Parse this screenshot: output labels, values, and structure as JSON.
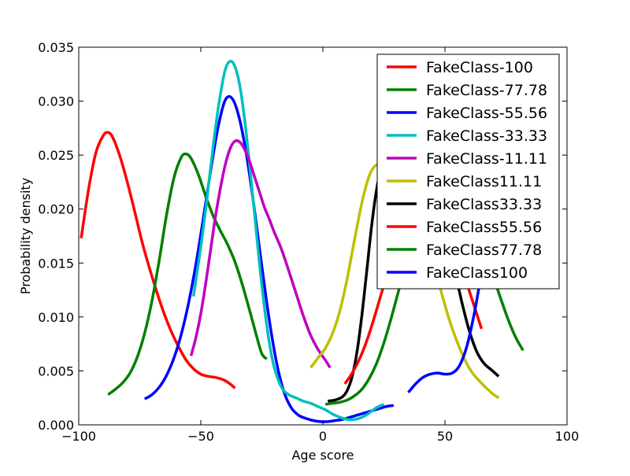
{
  "chart_data": {
    "type": "line",
    "title": "",
    "xlabel": "Age score",
    "ylabel": "Probability density",
    "xlim": [
      -100,
      100
    ],
    "ylim": [
      0,
      0.035
    ],
    "xticks": [
      -100,
      -50,
      0,
      50,
      100
    ],
    "xtick_labels": [
      "−100",
      "−50",
      "0",
      "50",
      "100"
    ],
    "yticks": [
      0,
      0.005,
      0.01,
      0.015,
      0.02,
      0.025,
      0.03,
      0.035
    ],
    "ytick_labels": [
      "0.000",
      "0.005",
      "0.010",
      "0.015",
      "0.020",
      "0.025",
      "0.030",
      "0.035"
    ],
    "grid": false,
    "legend_position": "top-right",
    "series": [
      {
        "name": "FakeClass-100",
        "color": "#ff0000",
        "x": [
          -99,
          -96,
          -93,
          -90,
          -88,
          -86,
          -83,
          -80,
          -77,
          -74,
          -71,
          -68,
          -65,
          -62,
          -59,
          -56,
          -53,
          -50,
          -47,
          -44,
          -41,
          -38,
          -36
        ],
        "y": [
          0.0173,
          0.0218,
          0.0252,
          0.0268,
          0.0271,
          0.0266,
          0.0248,
          0.0224,
          0.0197,
          0.0169,
          0.0145,
          0.0123,
          0.0103,
          0.0086,
          0.0072,
          0.006,
          0.0052,
          0.0047,
          0.0045,
          0.0044,
          0.0042,
          0.0038,
          0.0034
        ]
      },
      {
        "name": "FakeClass-77.78",
        "color": "#008000",
        "x": [
          -88,
          -85,
          -82,
          -79,
          -76,
          -73,
          -70,
          -67,
          -64,
          -61,
          -58,
          -56,
          -54,
          -51,
          -48,
          -45,
          -42,
          -39,
          -36,
          -33,
          -30,
          -27,
          -25,
          -23
        ],
        "y": [
          0.0028,
          0.0033,
          0.0039,
          0.0048,
          0.0063,
          0.0085,
          0.0115,
          0.0153,
          0.0195,
          0.0229,
          0.0248,
          0.0251,
          0.0247,
          0.0232,
          0.0212,
          0.0194,
          0.018,
          0.0167,
          0.0151,
          0.013,
          0.0106,
          0.0081,
          0.0066,
          0.0061
        ]
      },
      {
        "name": "FakeClass-55.56",
        "color": "#0000ff",
        "x": [
          -73,
          -70,
          -67,
          -64,
          -61,
          -58,
          -55,
          -52,
          -49,
          -46,
          -43,
          -40,
          -37,
          -34,
          -31,
          -28,
          -25,
          -22,
          -19,
          -16,
          -13,
          -10,
          -7,
          -4,
          -1,
          2,
          5,
          8,
          11,
          14,
          17,
          20,
          23,
          26,
          29
        ],
        "y": [
          0.0024,
          0.0028,
          0.0035,
          0.0046,
          0.0062,
          0.0084,
          0.0113,
          0.0149,
          0.0191,
          0.0235,
          0.0275,
          0.0301,
          0.0302,
          0.0282,
          0.0246,
          0.0199,
          0.0147,
          0.0098,
          0.0058,
          0.0031,
          0.0016,
          0.0009,
          0.0006,
          0.0004,
          0.0003,
          0.0003,
          0.0004,
          0.0005,
          0.0007,
          0.0009,
          0.0011,
          0.0013,
          0.0015,
          0.0017,
          0.0018
        ]
      },
      {
        "name": "FakeClass-33.33",
        "color": "#00bfbf",
        "x": [
          -53,
          -50,
          -48,
          -46,
          -44,
          -42,
          -40,
          -38,
          -36,
          -34,
          -32,
          -30,
          -28,
          -26,
          -24,
          -22,
          -20,
          -17,
          -14,
          -11,
          -8,
          -5,
          -2,
          1,
          4,
          7,
          10,
          13,
          16,
          19,
          22,
          25
        ],
        "y": [
          0.0119,
          0.0165,
          0.02,
          0.0238,
          0.0275,
          0.0306,
          0.0329,
          0.0337,
          0.0332,
          0.0314,
          0.0282,
          0.0241,
          0.0196,
          0.015,
          0.011,
          0.0077,
          0.0054,
          0.0035,
          0.0028,
          0.0025,
          0.0022,
          0.002,
          0.0017,
          0.0014,
          0.001,
          0.0007,
          0.0005,
          0.0005,
          0.0007,
          0.0011,
          0.0016,
          0.0019
        ]
      },
      {
        "name": "FakeClass-11.11",
        "color": "#bf00bf",
        "x": [
          -54,
          -52,
          -50,
          -48,
          -46,
          -44,
          -42,
          -40,
          -38,
          -36,
          -34,
          -32,
          -30,
          -28,
          -26,
          -24,
          -22,
          -20,
          -17,
          -14,
          -11,
          -8,
          -5,
          -2,
          1,
          3
        ],
        "y": [
          0.0064,
          0.0081,
          0.0103,
          0.0131,
          0.0162,
          0.0193,
          0.0219,
          0.0241,
          0.0256,
          0.0263,
          0.0262,
          0.0255,
          0.0244,
          0.023,
          0.0216,
          0.0202,
          0.0191,
          0.0179,
          0.0163,
          0.0143,
          0.0122,
          0.0101,
          0.0083,
          0.007,
          0.006,
          0.0053
        ]
      },
      {
        "name": "FakeClass11.11",
        "color": "#bfbf00",
        "x": [
          -5,
          -2,
          1,
          4,
          7,
          10,
          13,
          16,
          19,
          22,
          25,
          28,
          31,
          34,
          37,
          40,
          43,
          46,
          49,
          52,
          55,
          58,
          61,
          64,
          67,
          70,
          72
        ],
        "y": [
          0.0053,
          0.0062,
          0.0071,
          0.0085,
          0.0106,
          0.0136,
          0.0172,
          0.0206,
          0.0231,
          0.0241,
          0.0239,
          0.0232,
          0.0225,
          0.0218,
          0.0208,
          0.0193,
          0.0171,
          0.0145,
          0.0119,
          0.0096,
          0.0077,
          0.0061,
          0.0049,
          0.0041,
          0.0034,
          0.0028,
          0.0025
        ]
      },
      {
        "name": "FakeClass33.33",
        "color": "#000000",
        "x": [
          2,
          5,
          8,
          10,
          12,
          14,
          16,
          18,
          20,
          22,
          24,
          26,
          28,
          30,
          33,
          36,
          39,
          42,
          45,
          48,
          51,
          54,
          57,
          60,
          63,
          66,
          69,
          72
        ],
        "y": [
          0.0022,
          0.0023,
          0.0026,
          0.0032,
          0.0045,
          0.0068,
          0.0102,
          0.0143,
          0.0185,
          0.0218,
          0.0238,
          0.0245,
          0.0244,
          0.0241,
          0.0237,
          0.0234,
          0.0231,
          0.0225,
          0.0214,
          0.0196,
          0.0172,
          0.0143,
          0.0113,
          0.0087,
          0.0068,
          0.0057,
          0.0051,
          0.0045
        ]
      },
      {
        "name": "FakeClass55.56",
        "color": "#ff0000",
        "x": [
          9,
          12,
          15,
          18,
          21,
          24,
          27,
          30,
          33,
          36,
          39,
          42,
          45,
          48,
          51,
          54,
          57,
          60,
          63,
          65
        ],
        "y": [
          0.0038,
          0.0048,
          0.0061,
          0.0078,
          0.0099,
          0.0122,
          0.0146,
          0.0168,
          0.0186,
          0.0198,
          0.0204,
          0.0205,
          0.0202,
          0.0194,
          0.0182,
          0.0165,
          0.0145,
          0.0124,
          0.0103,
          0.0089
        ]
      },
      {
        "name": "FakeClass77.78",
        "color": "#008000",
        "x": [
          1,
          4,
          7,
          10,
          13,
          16,
          19,
          22,
          25,
          28,
          31,
          34,
          37,
          40,
          43,
          46,
          49,
          52,
          55,
          58,
          61,
          64,
          67,
          70,
          73,
          76,
          79,
          82
        ],
        "y": [
          0.0019,
          0.002,
          0.0021,
          0.0023,
          0.0027,
          0.0033,
          0.0043,
          0.0057,
          0.0076,
          0.0099,
          0.0124,
          0.0148,
          0.0168,
          0.0182,
          0.019,
          0.0195,
          0.0197,
          0.0197,
          0.0194,
          0.0189,
          0.0181,
          0.0169,
          0.0154,
          0.0136,
          0.0116,
          0.0097,
          0.0081,
          0.0069
        ]
      },
      {
        "name": "FakeClass100",
        "color": "#0000ff",
        "x": [
          35,
          38,
          41,
          44,
          47,
          50,
          53,
          56,
          59,
          62,
          64,
          66,
          68,
          70,
          72,
          74,
          76
        ],
        "y": [
          0.003,
          0.0038,
          0.0044,
          0.0047,
          0.0048,
          0.0047,
          0.0048,
          0.0055,
          0.0073,
          0.0103,
          0.0128,
          0.0153,
          0.0178,
          0.0198,
          0.021,
          0.0214,
          0.0212
        ]
      }
    ]
  }
}
